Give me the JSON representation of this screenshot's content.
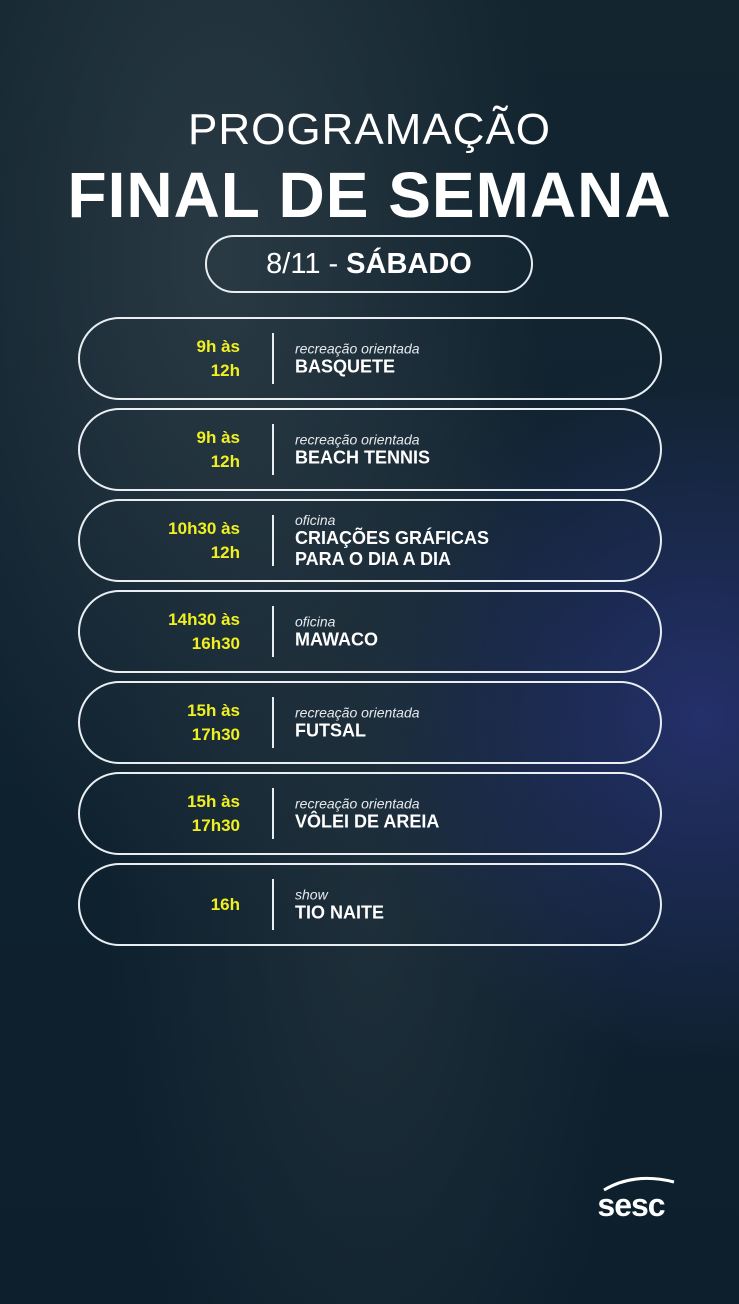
{
  "header": {
    "line1": "PROGRAMAÇÃO",
    "line2": "FINAL DE SEMANA"
  },
  "date": {
    "day": "8/11 -",
    "weekday": "SÁBADO"
  },
  "events": [
    {
      "time": "9h às\n12h",
      "category": "recreação orientada",
      "title": "BASQUETE"
    },
    {
      "time": "9h às\n12h",
      "category": "recreação orientada",
      "title": "BEACH TENNIS"
    },
    {
      "time": "10h30 às\n12h",
      "category": "oficina",
      "title": "CRIAÇÕES GRÁFICAS\nPARA O DIA A DIA"
    },
    {
      "time": "14h30 às\n16h30",
      "category": "oficina",
      "title": "MAWACO"
    },
    {
      "time": "15h às\n17h30",
      "category": "recreação orientada",
      "title": "FUTSAL"
    },
    {
      "time": "15h às\n17h30",
      "category": "recreação orientada",
      "title": "VÔLEI DE AREIA"
    },
    {
      "time": "16h",
      "category": "show",
      "title": "TIO NAITE"
    }
  ],
  "logo": {
    "text": "sesc"
  },
  "colors": {
    "accent": "#f0f020",
    "background": "#0f2230"
  }
}
